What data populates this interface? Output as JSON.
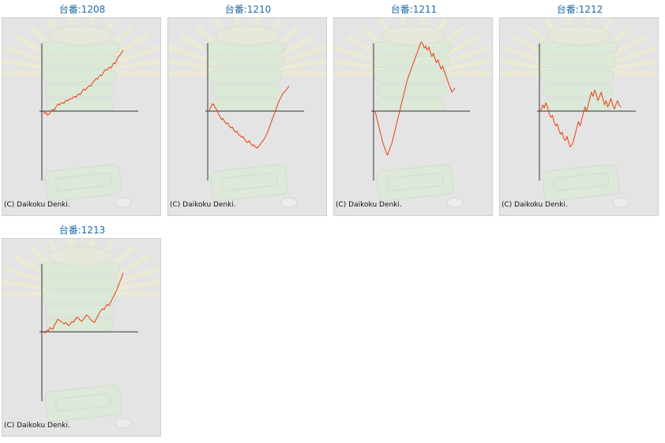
{
  "colors": {
    "title": "#1a6aa6",
    "card_bg": "#e4e4e4",
    "line": "#e8400c",
    "axis": "#333333",
    "machine_tint": "#cfe8c8"
  },
  "copyright": "(C) Daikoku Denki.",
  "machines": [
    {
      "title": "台番:1208",
      "series": [
        0,
        -120,
        -60,
        -200,
        -150,
        -80,
        50,
        80,
        40,
        180,
        260,
        350,
        300,
        380,
        420,
        360,
        460,
        520,
        480,
        560,
        600,
        580,
        660,
        700,
        650,
        760,
        820,
        780,
        860,
        980,
        1050,
        1000,
        1080,
        1160,
        1220,
        1180,
        1300,
        1400,
        1480,
        1560,
        1520,
        1640,
        1720,
        1680,
        1800,
        1900,
        1980,
        1950,
        2040,
        2100,
        2050,
        2180,
        2300,
        2250,
        2400,
        2550,
        2620,
        2700,
        2800,
        2900
      ]
    },
    {
      "title": "台番:1210",
      "series": [
        0,
        200,
        350,
        300,
        150,
        50,
        -150,
        -250,
        -400,
        -350,
        -500,
        -600,
        -550,
        -700,
        -800,
        -750,
        -900,
        -1000,
        -950,
        -1100,
        -1150,
        -1250,
        -1200,
        -1350,
        -1450,
        -1500,
        -1400,
        -1550,
        -1650,
        -1600,
        -1700,
        -1750,
        -1700,
        -1600,
        -1500,
        -1400,
        -1300,
        -1150,
        -1000,
        -800,
        -600,
        -400,
        -200,
        0,
        200,
        400,
        550,
        700,
        850,
        900,
        1000,
        1100,
        1200
      ]
    },
    {
      "title": "台番:1211",
      "series": [
        0,
        -300,
        -600,
        -900,
        -1200,
        -1500,
        -1700,
        -1900,
        -2100,
        -1900,
        -1700,
        -1500,
        -1200,
        -900,
        -600,
        -300,
        0,
        300,
        600,
        900,
        1200,
        1500,
        1700,
        1900,
        2100,
        2300,
        2500,
        2700,
        2900,
        3100,
        3300,
        3200,
        3000,
        3100,
        2900,
        3050,
        2800,
        2600,
        2750,
        2500,
        2300,
        2450,
        2200,
        2000,
        2150,
        1900,
        1700,
        1500,
        1300,
        1100,
        900,
        1000,
        1100
      ]
    },
    {
      "title": "台番:1212",
      "series": [
        0,
        300,
        150,
        400,
        200,
        -100,
        -300,
        -200,
        -500,
        -700,
        -600,
        -900,
        -1100,
        -1000,
        -1300,
        -1400,
        -1200,
        -1500,
        -1700,
        -1600,
        -1400,
        -1100,
        -800,
        -500,
        -700,
        -400,
        -100,
        200,
        0,
        300,
        600,
        900,
        700,
        1000,
        800,
        500,
        700,
        900,
        600,
        300,
        500,
        200,
        400,
        600,
        300,
        100,
        300,
        500,
        300,
        200
      ]
    },
    {
      "title": "台番:1213",
      "series": [
        0,
        -60,
        80,
        40,
        200,
        150,
        120,
        350,
        450,
        600,
        550,
        500,
        420,
        380,
        450,
        350,
        300,
        400,
        500,
        450,
        600,
        700,
        650,
        550,
        500,
        600,
        700,
        800,
        750,
        650,
        550,
        500,
        450,
        600,
        750,
        900,
        1000,
        1100,
        1050,
        1200,
        1300,
        1250,
        1400,
        1550,
        1700,
        1850,
        2000,
        2200,
        2400,
        2600,
        2800
      ]
    }
  ]
}
